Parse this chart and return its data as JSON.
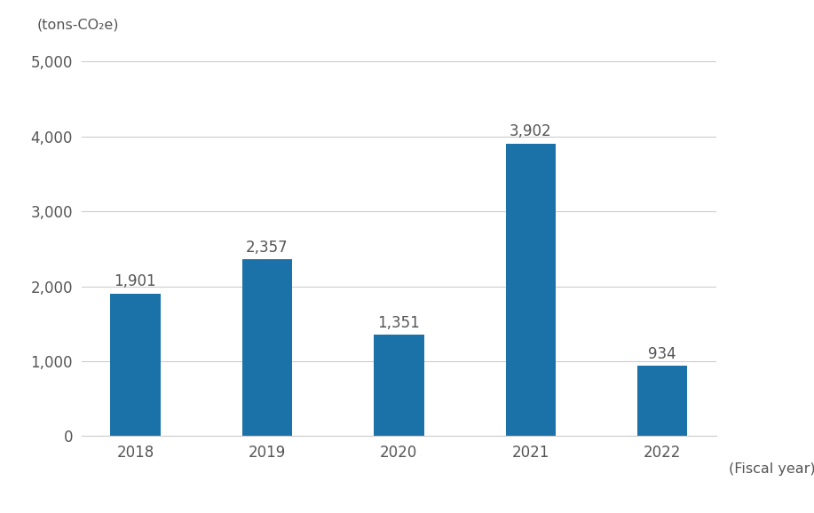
{
  "categories": [
    "2018",
    "2019",
    "2020",
    "2021",
    "2022"
  ],
  "values": [
    1901,
    2357,
    1351,
    3902,
    934
  ],
  "bar_color": "#1a72a8",
  "ylabel": "(tons-CO₂e)",
  "xlabel": "(Fiscal year)",
  "ylim": [
    0,
    5000
  ],
  "yticks": [
    0,
    1000,
    2000,
    3000,
    4000,
    5000
  ],
  "ytick_labels": [
    "0",
    "1,000",
    "2,000",
    "3,000",
    "4,000",
    "5,000"
  ],
  "bar_labels": [
    "1,901",
    "2,357",
    "1,351",
    "3,902",
    "934"
  ],
  "background_color": "#ffffff",
  "grid_color": "#cccccc",
  "text_color": "#555555",
  "label_fontsize": 11.5,
  "tick_fontsize": 12,
  "annotation_fontsize": 12,
  "bar_width": 0.38
}
